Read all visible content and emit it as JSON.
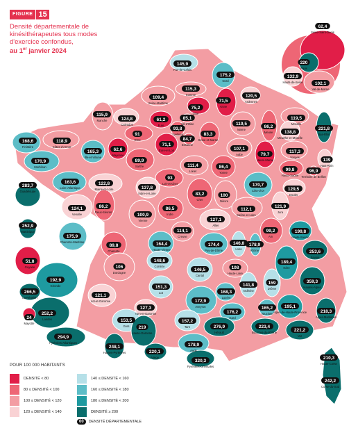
{
  "figure": {
    "tag": "FIGURE",
    "number": "15"
  },
  "title": {
    "line1": "Densité départementale de",
    "line2": "kinésithérapeutes tous modes",
    "line3": "d'exercice confondus,",
    "date_prefix": "au 1",
    "date_sup": "er",
    "date_suffix": " janvier 2024"
  },
  "colors": {
    "c1": "#e11e48",
    "c2": "#ee6675",
    "c3": "#f39da3",
    "c4": "#f9d2d4",
    "c5": "#b6e0e8",
    "c6": "#5cbdc7",
    "c7": "#1e9aa0",
    "c8": "#0a6e6c"
  },
  "legend": {
    "heading": "POUR 100 000 HABITANTS",
    "items": [
      {
        "class": "c1",
        "label": "DENSITÉ < 80"
      },
      {
        "class": "c2",
        "label": "80 ≤ DENSITÉ < 100"
      },
      {
        "class": "c3",
        "label": "100 ≤ DENSITÉ < 120"
      },
      {
        "class": "c4",
        "label": "120 ≤ DENSITÉ < 140"
      },
      {
        "class": "c5",
        "label": "140 ≤ DENSITÉ < 160"
      },
      {
        "class": "c6",
        "label": "160 ≤ DENSITÉ < 180"
      },
      {
        "class": "c7",
        "label": "180 ≤ DENSITÉ < 200"
      },
      {
        "class": "c8",
        "label": "DENSITÉ ≥ 200"
      }
    ],
    "pill_sample": "00",
    "pill_label": "DENSITÉ DÉPARTEMENTALE"
  },
  "departments": [
    {
      "name": "Pas-de-Calais",
      "value": "145,9",
      "class": "c5"
    },
    {
      "name": "Nord",
      "value": "175,2",
      "class": "c6"
    },
    {
      "name": "Somme",
      "value": "115,3",
      "class": "c3"
    },
    {
      "name": "Seine-Maritime",
      "value": "109,4",
      "class": "c3"
    },
    {
      "name": "Aisne",
      "value": "71,5",
      "class": "c1"
    },
    {
      "name": "Oise",
      "value": "75,2",
      "class": "c1"
    },
    {
      "name": "Ardennes",
      "value": "120,5",
      "class": "c4"
    },
    {
      "name": "Manche",
      "value": "115,9",
      "class": "c3"
    },
    {
      "name": "Calvados",
      "value": "124,8",
      "class": "c4"
    },
    {
      "name": "Val-d'Oise",
      "value": "85,1",
      "class": "c2"
    },
    {
      "name": "Marne",
      "value": "119,5",
      "class": "c3"
    },
    {
      "name": "Meuse",
      "value": "86,2",
      "class": "c2"
    },
    {
      "name": "Moselle",
      "value": "119,5",
      "class": "c3"
    },
    {
      "name": "Bas-Rhin",
      "value": "221,8",
      "class": "c8"
    },
    {
      "name": "Finistère",
      "value": "168,6",
      "class": "c6"
    },
    {
      "name": "Côtes-d'Armor",
      "value": "118,9",
      "class": "c3"
    },
    {
      "name": "Orne",
      "value": "91",
      "class": "c2"
    },
    {
      "name": "Eure",
      "value": "61,2",
      "class": "c1"
    },
    {
      "name": "Yvelines",
      "value": "93,8",
      "class": "c2"
    },
    {
      "name": "Seine-et-Marne",
      "value": "83,3",
      "class": "c2"
    },
    {
      "name": "Meurthe-et-Moselle",
      "value": "138,8",
      "class": "c4"
    },
    {
      "name": "Ille-et-Vilaine",
      "value": "165,3",
      "class": "c6"
    },
    {
      "name": "Mayenne",
      "value": "62,6",
      "class": "c1"
    },
    {
      "name": "Eure-et-Loir",
      "value": "71,1",
      "class": "c1"
    },
    {
      "name": "Essonne",
      "value": "84,7",
      "class": "c2"
    },
    {
      "name": "Aube",
      "value": "107,1",
      "class": "c3"
    },
    {
      "name": "Haute-Marne",
      "value": "79,7",
      "class": "c1"
    },
    {
      "name": "Vosges",
      "value": "117,3",
      "class": "c3"
    },
    {
      "name": "Haut-Rhin",
      "value": "139",
      "class": "c4"
    },
    {
      "name": "Morbihan",
      "value": "170,9",
      "class": "c6"
    },
    {
      "name": "Sarthe",
      "value": "89,9",
      "class": "c2"
    },
    {
      "name": "Loiret",
      "value": "111,4",
      "class": "c3"
    },
    {
      "name": "Yonne",
      "value": "86,4",
      "class": "c2"
    },
    {
      "name": "Haute-Saône",
      "value": "99,8",
      "class": "c2"
    },
    {
      "name": "Territoire de Belfort",
      "value": "96,9",
      "class": "c2"
    },
    {
      "name": "Loire-Atlantique",
      "value": "163,6",
      "class": "c6"
    },
    {
      "name": "Maine-et-Loire",
      "value": "122,8",
      "class": "c4"
    },
    {
      "name": "Loir-et-Cher",
      "value": "93",
      "class": "c2"
    },
    {
      "name": "Indre-et-Loire",
      "value": "137,8",
      "class": "c4"
    },
    {
      "name": "Côte-d'Or",
      "value": "170,7",
      "class": "c6"
    },
    {
      "name": "Doubs",
      "value": "129,5",
      "class": "c4"
    },
    {
      "name": "Vendée",
      "value": "124,1",
      "class": "c4"
    },
    {
      "name": "Deux-Sèvres",
      "value": "86,2",
      "class": "c2"
    },
    {
      "name": "Vienne",
      "value": "100,9",
      "class": "c3"
    },
    {
      "name": "Cher",
      "value": "83,2",
      "class": "c2"
    },
    {
      "name": "Nièvre",
      "value": "100",
      "class": "c3"
    },
    {
      "name": "Indre",
      "value": "86,5",
      "class": "c2"
    },
    {
      "name": "Saône-et-Loire",
      "value": "112,1",
      "class": "c3"
    },
    {
      "name": "Jura",
      "value": "121,9",
      "class": "c4"
    },
    {
      "name": "Charente-Maritime",
      "value": "175,9",
      "class": "c6"
    },
    {
      "name": "Charente",
      "value": "89,8",
      "class": "c2"
    },
    {
      "name": "Haute-Vienne",
      "value": "164,4",
      "class": "c6"
    },
    {
      "name": "Creuse",
      "value": "114,1",
      "class": "c3"
    },
    {
      "name": "Allier",
      "value": "127,1",
      "class": "c4"
    },
    {
      "name": "Puy-de-Dôme",
      "value": "174,4",
      "class": "c6"
    },
    {
      "name": "Loire",
      "value": "146,8",
      "class": "c5"
    },
    {
      "name": "Rhône",
      "value": "178,9",
      "class": "c6"
    },
    {
      "name": "Ain",
      "value": "99,2",
      "class": "c2"
    },
    {
      "name": "Haute-Savoie",
      "value": "199,8",
      "class": "c7"
    },
    {
      "name": "Savoie",
      "value": "253,6",
      "class": "c8"
    },
    {
      "name": "Gironde",
      "value": "192,9",
      "class": "c7"
    },
    {
      "name": "Dordogne",
      "value": "106",
      "class": "c3"
    },
    {
      "name": "Corrèze",
      "value": "148,6",
      "class": "c5"
    },
    {
      "name": "Cantal",
      "value": "146,5",
      "class": "c5"
    },
    {
      "name": "Haute-Loire",
      "value": "108",
      "class": "c3"
    },
    {
      "name": "Isère",
      "value": "189,4",
      "class": "c7"
    },
    {
      "name": "Hautes-Alpes",
      "value": "359,3",
      "class": "c8"
    },
    {
      "name": "Lot-et-Garonne",
      "value": "121,1",
      "class": "c4"
    },
    {
      "name": "Lot",
      "value": "151,3",
      "class": "c5"
    },
    {
      "name": "Aveyron",
      "value": "172,9",
      "class": "c6"
    },
    {
      "name": "Lozère",
      "value": "168,3",
      "class": "c6"
    },
    {
      "name": "Ardèche",
      "value": "141,8",
      "class": "c5"
    },
    {
      "name": "Drôme",
      "value": "159",
      "class": "c5"
    },
    {
      "name": "Landes",
      "value": "252,2",
      "class": "c8"
    },
    {
      "name": "Tarn-et-Garonne",
      "value": "127,3",
      "class": "c4"
    },
    {
      "name": "Tarn",
      "value": "157,2",
      "class": "c5"
    },
    {
      "name": "Gard",
      "value": "176,2",
      "class": "c6"
    },
    {
      "name": "Vaucluse",
      "value": "165,2",
      "class": "c6"
    },
    {
      "name": "Alpes-de-Haute-Provence",
      "value": "195,1",
      "class": "c7"
    },
    {
      "name": "Alpes-Maritimes",
      "value": "218,3",
      "class": "c8"
    },
    {
      "name": "Gers",
      "value": "153,5",
      "class": "c5"
    },
    {
      "name": "Haute-Garonne",
      "value": "219",
      "class": "c8"
    },
    {
      "name": "Hérault",
      "value": "276,9",
      "class": "c8"
    },
    {
      "name": "Bouches-du-Rhône",
      "value": "223,4",
      "class": "c8"
    },
    {
      "name": "Var",
      "value": "221,2",
      "class": "c8"
    },
    {
      "name": "Pyrénées-Atlantiques",
      "value": "294,9",
      "class": "c8"
    },
    {
      "name": "Hautes-Pyrénées",
      "value": "248,1",
      "class": "c8"
    },
    {
      "name": "Ariège",
      "value": "220,1",
      "class": "c8"
    },
    {
      "name": "Aude",
      "value": "178,9",
      "class": "c6"
    },
    {
      "name": "Pyrénées-Orientales",
      "value": "320,3",
      "class": "c8"
    },
    {
      "name": "Haute-Corse",
      "value": "210,3",
      "class": "c8"
    },
    {
      "name": "Corse-du-Sud",
      "value": "242,2",
      "class": "c8"
    },
    {
      "name": "Guadeloupe",
      "value": "283,7",
      "class": "c8"
    },
    {
      "name": "Martinique",
      "value": "252,9",
      "class": "c8"
    },
    {
      "name": "Guyane",
      "value": "51,8",
      "class": "c1"
    },
    {
      "name": "La Réunion",
      "value": "266,5",
      "class": "c8"
    },
    {
      "name": "Mayotte",
      "value": "24",
      "class": "c1"
    },
    {
      "name": "Seine-Saint-Denis",
      "value": "62,4",
      "class": "c1"
    },
    {
      "name": "Paris",
      "value": "220",
      "class": "c8"
    },
    {
      "name": "Hauts-de-Seine",
      "value": "132,9",
      "class": "c4"
    },
    {
      "name": "Val-de-Marne",
      "value": "102,1",
      "class": "c3"
    }
  ]
}
